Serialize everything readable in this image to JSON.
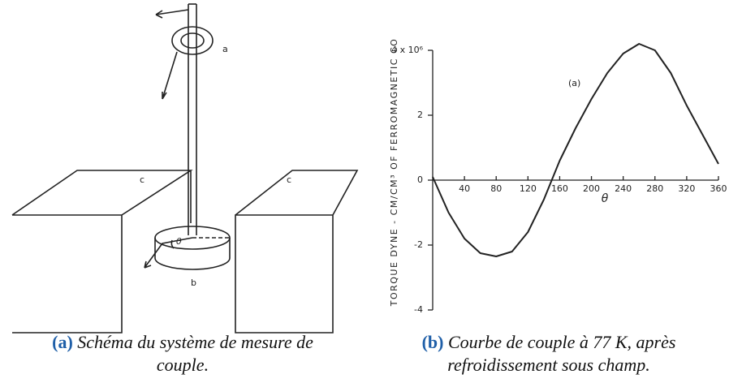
{
  "diagram": {
    "labels": {
      "ring": "a",
      "left_block": "c",
      "right_block": "c",
      "disk": "b",
      "angle": "θ"
    }
  },
  "chart_data": {
    "type": "line",
    "ylabel": "TORQUE DYNE - CM/CM³ OF FERROMAGNETIC CO",
    "xlabel": "θ",
    "annotation": "(a)",
    "x": [
      0,
      20,
      40,
      60,
      80,
      100,
      120,
      140,
      160,
      180,
      200,
      220,
      240,
      260,
      280,
      300,
      320,
      340,
      360
    ],
    "series": [
      {
        "name": "(a)",
        "color": "#222222",
        "values": [
          0.1,
          -1.0,
          -1.8,
          -2.25,
          -2.35,
          -2.2,
          -1.6,
          -0.6,
          0.6,
          1.6,
          2.5,
          3.3,
          3.9,
          4.2,
          4.0,
          3.3,
          2.3,
          1.4,
          0.5
        ]
      }
    ],
    "xlim": [
      0,
      360
    ],
    "xticks": [
      40,
      80,
      120,
      160,
      200,
      240,
      280,
      320,
      360
    ],
    "ylim": [
      -4,
      4
    ],
    "yticks": [
      -4,
      -2,
      0,
      2,
      {
        "value": 4,
        "label": "4 x 10⁶"
      }
    ]
  },
  "captions": [
    {
      "label": "(a)",
      "lines": [
        "Schéma du système de mesure de",
        "couple."
      ]
    },
    {
      "label": "(b)",
      "lines": [
        "Courbe de couple à 77 K, après",
        "refroidissement sous champ."
      ]
    }
  ]
}
